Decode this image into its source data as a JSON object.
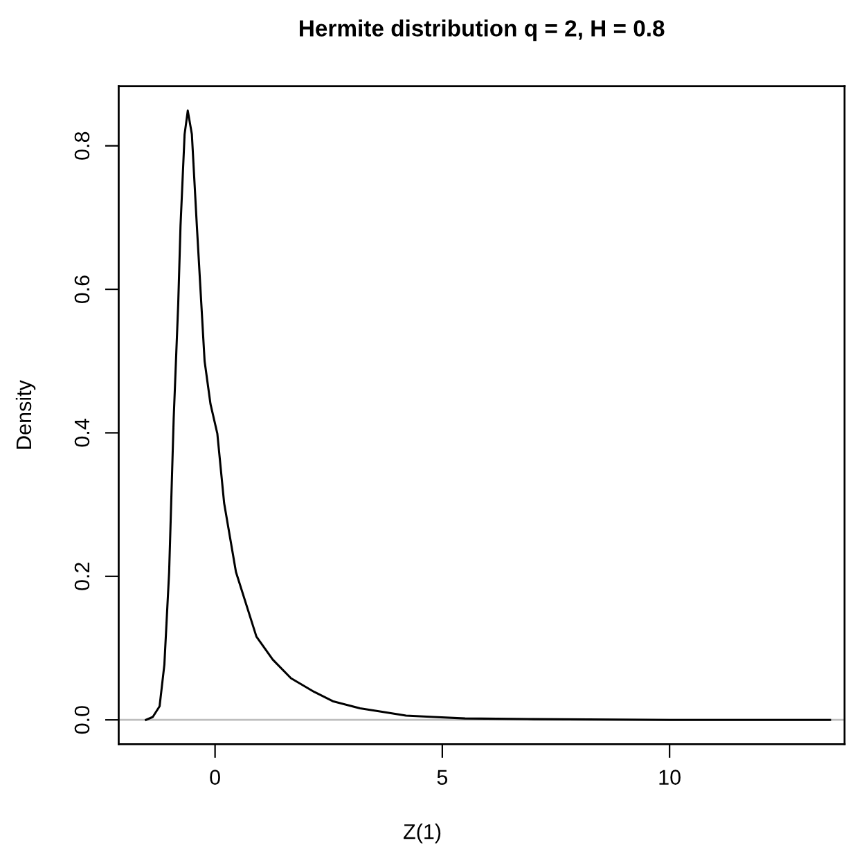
{
  "chart_data": {
    "type": "line",
    "title": "Hermite distribution q = 2, H = 0.8",
    "xlabel": "Z(1)",
    "ylabel": "Density",
    "x": [
      -1.52,
      -1.37,
      -1.22,
      -1.115,
      -1.01,
      -0.91,
      -0.81,
      -0.76,
      -0.67,
      -0.6,
      -0.51,
      -0.4,
      -0.23,
      -0.1,
      0.05,
      0.2,
      0.46,
      0.91,
      1.27,
      1.67,
      2.18,
      2.59,
      3.19,
      3.7,
      4.2,
      4.81,
      5.5,
      7.0,
      10.0,
      13.53
    ],
    "series": [
      {
        "color": "#000000",
        "values": [
          0.0,
          0.004,
          0.019,
          0.077,
          0.206,
          0.42,
          0.58,
          0.688,
          0.816,
          0.849,
          0.816,
          0.688,
          0.5,
          0.44,
          0.399,
          0.302,
          0.206,
          0.116,
          0.084,
          0.058,
          0.039,
          0.026,
          0.016,
          0.011,
          0.006,
          0.004,
          0.002,
          0.001,
          0.0,
          0.0
        ]
      }
    ],
    "xlim": [
      -2.12,
      13.85
    ],
    "ylim": [
      -0.034,
      0.883
    ],
    "xticks": [
      0,
      5,
      10
    ],
    "yticks": [
      {
        "value": 0,
        "label": "0.0"
      },
      {
        "value": 0.2,
        "label": "0.2"
      },
      {
        "value": 0.4,
        "label": "0.4"
      },
      {
        "value": 0.6,
        "label": "0.6"
      },
      {
        "value": 0.8,
        "label": "0.8"
      }
    ],
    "ref_lines": [
      {
        "axis": "y",
        "value": 0,
        "color": "#bebebe"
      }
    ],
    "grid": false,
    "legend": false,
    "line_style": "solid"
  }
}
